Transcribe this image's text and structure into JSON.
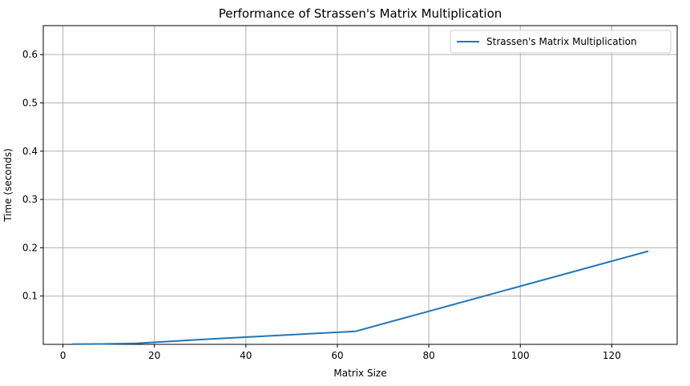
{
  "chart_data": {
    "type": "line",
    "title": "Performance of Strassen's Matrix Multiplication",
    "xlabel": "Matrix Size",
    "ylabel": "Time (seconds)",
    "xlim": [
      -4.3,
      134.3
    ],
    "ylim": [
      0,
      0.66
    ],
    "xticks": [
      0,
      20,
      40,
      60,
      80,
      100,
      120
    ],
    "yticks": [
      0.1,
      0.2,
      0.3,
      0.4,
      0.5,
      0.6
    ],
    "xtick_labels": [
      "0",
      "20",
      "40",
      "60",
      "80",
      "100",
      "120"
    ],
    "ytick_labels": [
      "0.1",
      "0.2",
      "0.3",
      "0.4",
      "0.5",
      "0.6"
    ],
    "grid": true,
    "legend_position": "top-right",
    "series": [
      {
        "name": "Strassen's Matrix Multiplication",
        "color": "#1f77b4",
        "x": [
          2,
          4,
          8,
          16,
          32,
          64,
          128
        ],
        "y": [
          0.0005,
          0.0006,
          0.0008,
          0.002,
          0.011,
          0.027,
          0.193
        ]
      }
    ]
  }
}
